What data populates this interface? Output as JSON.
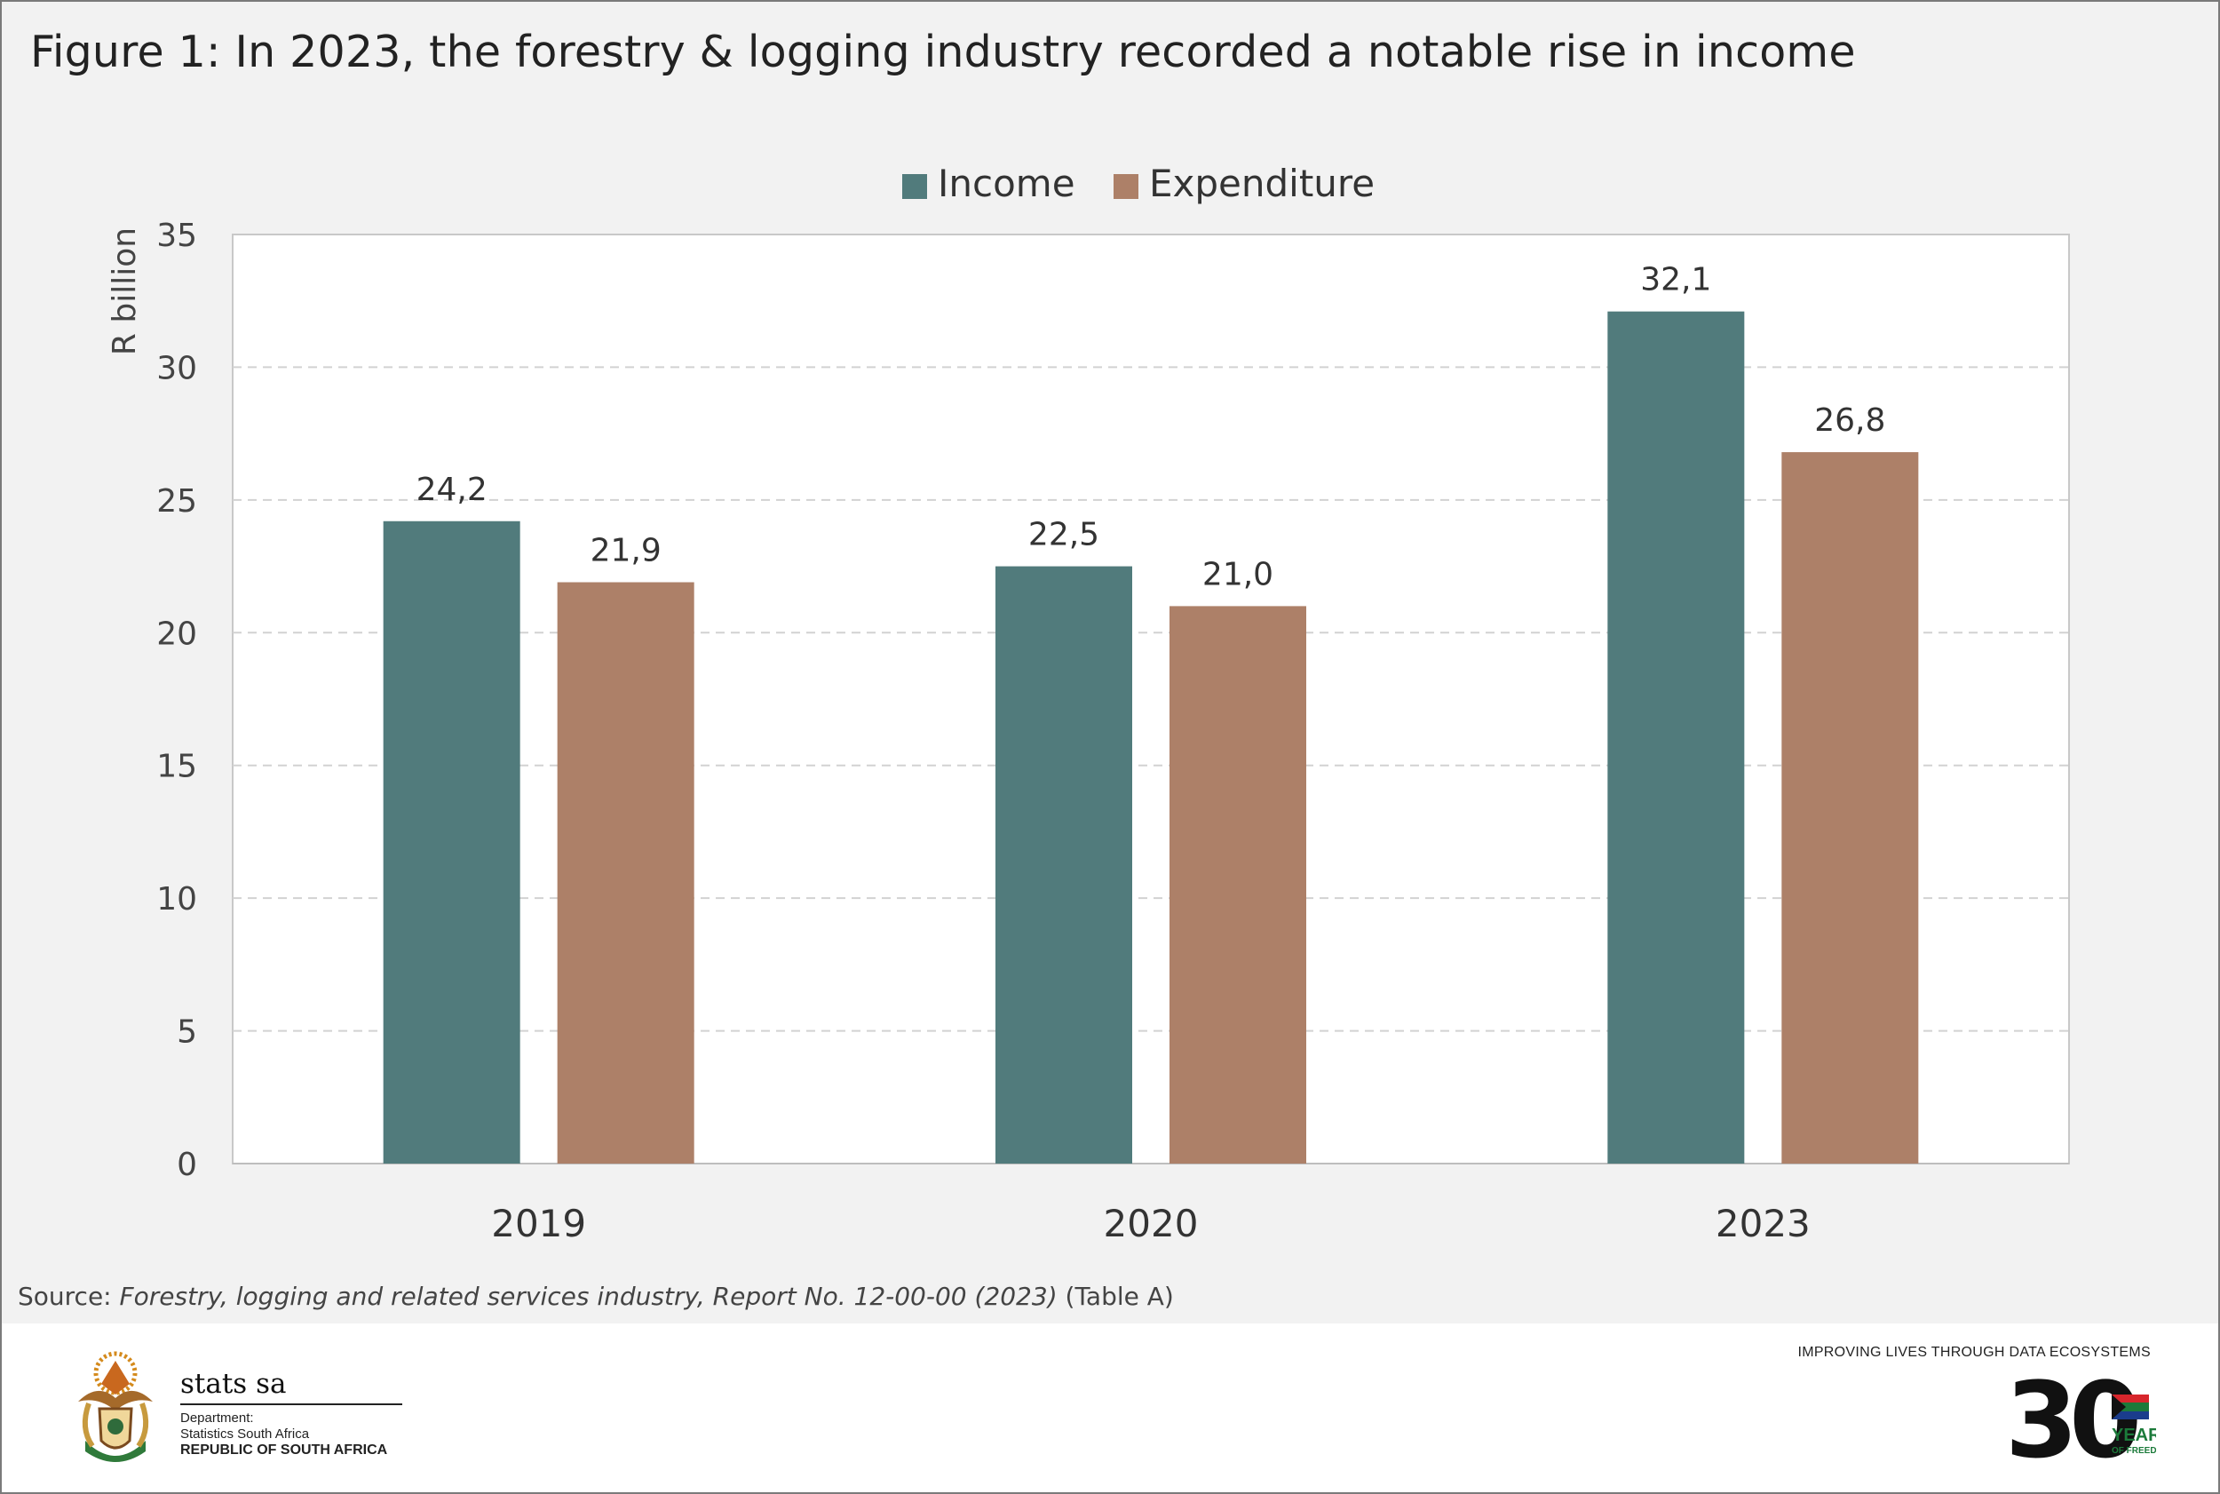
{
  "title": "Figure 1: In 2023, the forestry & logging industry recorded a notable rise in income",
  "chart_data": {
    "type": "bar",
    "categories": [
      "2019",
      "2020",
      "2023"
    ],
    "series": [
      {
        "name": "Income",
        "values": [
          24.2,
          22.5,
          32.1
        ],
        "labels": [
          "24,2",
          "22,5",
          "32,1"
        ],
        "color": "#517b7c"
      },
      {
        "name": "Expenditure",
        "values": [
          21.9,
          21.0,
          26.8
        ],
        "labels": [
          "21,9",
          "21,0",
          "26,8"
        ],
        "color": "#ad8068"
      }
    ],
    "ylabel": "R billion",
    "xlabel": "",
    "ylim": [
      0,
      35
    ],
    "yticks": [
      0,
      5,
      10,
      15,
      20,
      25,
      30,
      35
    ],
    "grid": true,
    "legend": "top-center"
  },
  "source": {
    "prefix": "Source: ",
    "title": "Forestry, logging and related services industry, Report No. 12-00-00 (2023)",
    "suffix": " (Table A)"
  },
  "footer": {
    "brand": "stats sa",
    "dept_line1": "Department:",
    "dept_line2": "Statistics South Africa",
    "dept_line3": "REPUBLIC OF SOUTH AFRICA",
    "tagline": "IMPROVING LIVES THROUGH DATA ECOSYSTEMS",
    "anniversary_number": "30",
    "anniversary_line1": "YEARS",
    "anniversary_line2": "OF FREEDOM"
  }
}
